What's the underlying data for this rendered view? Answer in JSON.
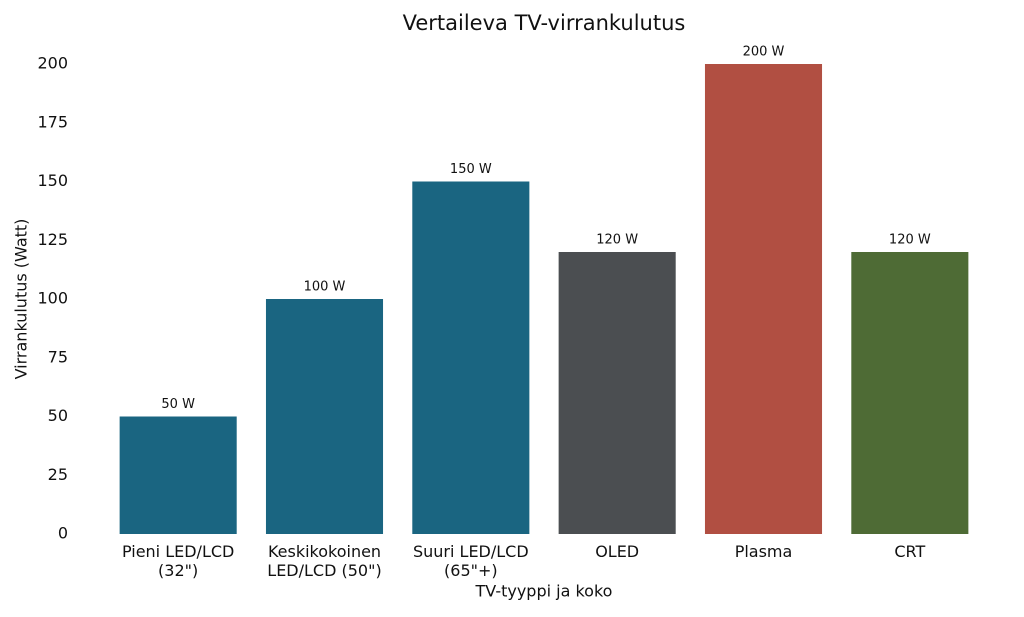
{
  "chart_data": {
    "type": "bar",
    "title": "Vertaileva TV-virrankulutus",
    "x_label": "TV-tyyppi ja koko",
    "y_label": "Virrankulutus (Watt)",
    "categories": [
      "Pieni LED/LCD\n(32\")",
      "Keskikokoinen\nLED/LCD (50\")",
      "Suuri LED/LCD\n(65\"+)",
      "OLED",
      "Plasma",
      "CRT"
    ],
    "values": [
      50,
      100,
      150,
      120,
      200,
      120
    ],
    "value_labels": [
      "50 W",
      "100 W",
      "150 W",
      "120 W",
      "200 W",
      "120 W"
    ],
    "colors": [
      "#1a6581",
      "#1a6581",
      "#1a6581",
      "#4b4e51",
      "#b14f42",
      "#4e6b35"
    ],
    "ylim": [
      0,
      200
    ],
    "yticks": [
      0,
      25,
      50,
      75,
      100,
      125,
      150,
      175,
      200
    ],
    "grid": false
  }
}
